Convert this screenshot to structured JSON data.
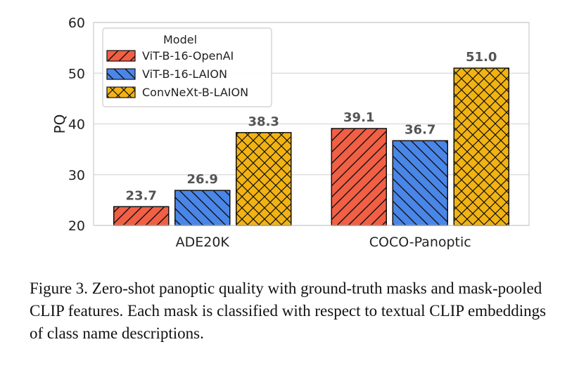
{
  "chart_data": {
    "type": "bar",
    "categories": [
      "ADE20K",
      "COCO-Panoptic"
    ],
    "series": [
      {
        "name": "ViT-B-16-OpenAI",
        "values": [
          23.7,
          39.1
        ],
        "color": "#f15f45",
        "hatch": "forward-diagonal"
      },
      {
        "name": "ViT-B-16-LAION",
        "values": [
          26.9,
          36.7
        ],
        "color": "#4a86e8",
        "hatch": "backward-diagonal"
      },
      {
        "name": "ConvNeXt-B-LAION",
        "values": [
          38.3,
          51.0
        ],
        "color": "#f2b312",
        "hatch": "crosshatch"
      }
    ],
    "value_labels": [
      [
        "23.7",
        "39.1"
      ],
      [
        "26.9",
        "36.7"
      ],
      [
        "38.3",
        "51.0"
      ]
    ],
    "xlabel": "",
    "ylabel": "PQ",
    "ylim": [
      20,
      60
    ],
    "yticks": [
      20,
      30,
      40,
      50,
      60
    ],
    "grid": true,
    "legend": {
      "title": "Model",
      "placement": "top-left"
    }
  },
  "caption": "Figure 3. Zero-shot panoptic quality with ground-truth masks and mask-pooled CLIP features. Each mask is classified with respect to textual CLIP embeddings of class name descriptions."
}
